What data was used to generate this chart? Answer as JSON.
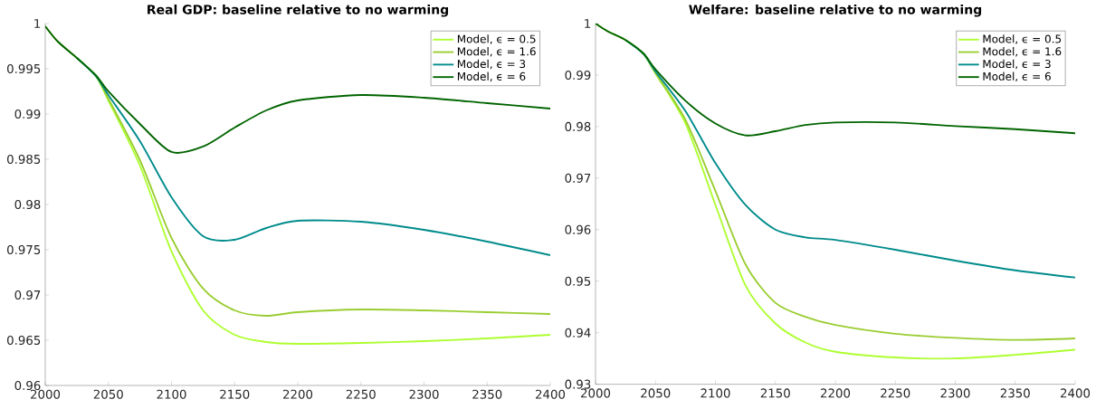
{
  "chart_data": [
    {
      "type": "line",
      "title": "Real GDP: baseline relative to no warming",
      "x": [
        2000,
        2010,
        2025,
        2040,
        2050,
        2075,
        2100,
        2125,
        2150,
        2175,
        2200,
        2250,
        2300,
        2350,
        2400
      ],
      "series": [
        {
          "name": "Model, ϵ = 0.5",
          "color": "#adff2f",
          "values": [
            null,
            null,
            0.9962,
            0.9942,
            0.9915,
            0.9843,
            0.9748,
            0.9683,
            0.9656,
            0.9648,
            0.9646,
            0.9647,
            0.9649,
            0.9652,
            0.9656
          ]
        },
        {
          "name": "Model, ϵ = 1.6",
          "color": "#9acd32",
          "values": [
            0.9997,
            0.998,
            0.9962,
            0.9942,
            0.9917,
            0.9849,
            0.9763,
            0.9707,
            0.9683,
            0.9677,
            0.9681,
            0.9684,
            0.9683,
            0.9681,
            0.9679
          ]
        },
        {
          "name": "Model, ϵ = 3",
          "color": "#008b8b",
          "values": [
            null,
            null,
            0.9962,
            0.9942,
            0.9921,
            0.987,
            0.9808,
            0.9765,
            0.9761,
            0.9774,
            0.9782,
            0.9781,
            0.9772,
            0.9759,
            0.9744
          ]
        },
        {
          "name": "Model, ϵ = 6",
          "color": "#006400",
          "values": [
            0.9997,
            0.998,
            0.9962,
            0.9943,
            0.9925,
            0.9889,
            0.9858,
            0.9864,
            0.9885,
            0.9904,
            0.9915,
            0.9921,
            0.9918,
            0.9912,
            0.9906
          ]
        }
      ],
      "xlim": [
        2000,
        2400
      ],
      "xticks": [
        2000,
        2050,
        2100,
        2150,
        2200,
        2250,
        2300,
        2350,
        2400
      ],
      "ylim": [
        0.96,
        1
      ],
      "yticks": [
        0.96,
        0.965,
        0.97,
        0.975,
        0.98,
        0.985,
        0.99,
        0.995,
        1
      ],
      "legend": "top right",
      "grid": false
    },
    {
      "type": "line",
      "title": "Welfare: baseline relative to no warming",
      "x": [
        2000,
        2010,
        2025,
        2040,
        2050,
        2075,
        2100,
        2125,
        2150,
        2175,
        2200,
        2250,
        2300,
        2350,
        2400
      ],
      "series": [
        {
          "name": "Model, ϵ = 0.5",
          "color": "#adff2f",
          "values": [
            null,
            null,
            0.9968,
            0.9941,
            0.9903,
            0.9806,
            0.9648,
            0.9492,
            0.9418,
            0.9381,
            0.9363,
            0.9352,
            0.935,
            0.9357,
            0.9367
          ]
        },
        {
          "name": "Model, ϵ = 1.6",
          "color": "#9acd32",
          "values": [
            1.0,
            0.9985,
            0.9968,
            0.9941,
            0.9904,
            0.9813,
            0.9675,
            0.9533,
            0.9458,
            0.9431,
            0.9415,
            0.9398,
            0.939,
            0.9386,
            0.9389
          ]
        },
        {
          "name": "Model, ϵ = 3",
          "color": "#008b8b",
          "values": [
            null,
            null,
            0.9968,
            0.9941,
            0.9907,
            0.983,
            0.9729,
            0.9648,
            0.96,
            0.9585,
            0.958,
            0.9561,
            0.954,
            0.9521,
            0.9507
          ]
        },
        {
          "name": "Model, ϵ = 6",
          "color": "#006400",
          "values": [
            1.0,
            0.9985,
            0.9968,
            0.9942,
            0.9911,
            0.985,
            0.9806,
            0.9783,
            0.9791,
            0.9803,
            0.9808,
            0.9808,
            0.9801,
            0.9795,
            0.9787
          ]
        }
      ],
      "xlim": [
        2000,
        2400
      ],
      "xticks": [
        2000,
        2050,
        2100,
        2150,
        2200,
        2250,
        2300,
        2350,
        2400
      ],
      "ylim": [
        0.93,
        1
      ],
      "yticks": [
        0.93,
        0.94,
        0.95,
        0.96,
        0.97,
        0.98,
        0.99,
        1
      ],
      "legend": "top right",
      "grid": false
    }
  ]
}
